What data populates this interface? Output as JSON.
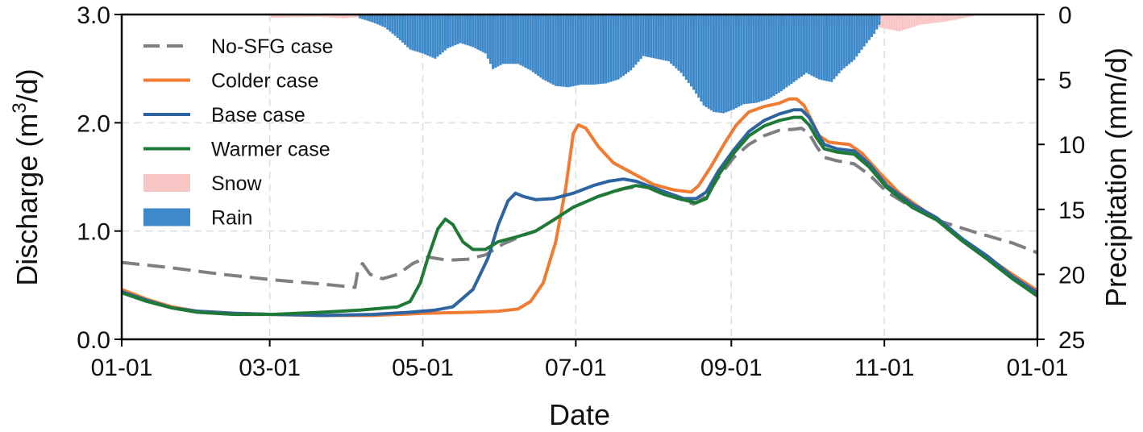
{
  "chart_data": {
    "type": "line",
    "xlabel": "Date",
    "ylabel_left": "Discharge (m",
    "ylabel_left_sup": "3",
    "ylabel_left_tail": "/d)",
    "ylabel_right": "Precipitation (mm/d)",
    "xlim": [
      0,
      365
    ],
    "ylim_left": [
      0,
      3
    ],
    "ylim_right": [
      0,
      25
    ],
    "right_axis_inverted": true,
    "grid": true,
    "legend_position": "upper-left",
    "x_ticks": [
      {
        "day": 0,
        "label": "01-01"
      },
      {
        "day": 59,
        "label": "03-01"
      },
      {
        "day": 120,
        "label": "05-01"
      },
      {
        "day": 181,
        "label": "07-01"
      },
      {
        "day": 243,
        "label": "09-01"
      },
      {
        "day": 304,
        "label": "11-01"
      },
      {
        "day": 365,
        "label": "01-01"
      }
    ],
    "y_ticks_left": [
      {
        "value": 0,
        "label": "0.0"
      },
      {
        "value": 1,
        "label": "1.0"
      },
      {
        "value": 2,
        "label": "2.0"
      },
      {
        "value": 3,
        "label": "3.0"
      }
    ],
    "y_ticks_right": [
      {
        "value": 0,
        "label": "0"
      },
      {
        "value": 5,
        "label": "5"
      },
      {
        "value": 10,
        "label": "10"
      },
      {
        "value": 15,
        "label": "15"
      },
      {
        "value": 20,
        "label": "20"
      },
      {
        "value": 25,
        "label": "25"
      }
    ],
    "series": [
      {
        "name": "No-SFG case",
        "color": "#7f7f7f",
        "dash": "dashed",
        "points": [
          [
            0,
            0.71
          ],
          [
            20,
            0.66
          ],
          [
            40,
            0.6
          ],
          [
            60,
            0.55
          ],
          [
            80,
            0.51
          ],
          [
            93,
            0.48
          ],
          [
            94,
            0.62
          ],
          [
            96,
            0.7
          ],
          [
            99,
            0.6
          ],
          [
            104,
            0.56
          ],
          [
            110,
            0.6
          ],
          [
            116,
            0.7
          ],
          [
            122,
            0.76
          ],
          [
            130,
            0.73
          ],
          [
            138,
            0.74
          ],
          [
            145,
            0.78
          ],
          [
            152,
            0.88
          ],
          [
            160,
            0.96
          ],
          [
            165,
            1.0
          ],
          [
            172,
            1.1
          ],
          [
            180,
            1.22
          ],
          [
            190,
            1.32
          ],
          [
            200,
            1.39
          ],
          [
            208,
            1.42
          ],
          [
            215,
            1.35
          ],
          [
            222,
            1.3
          ],
          [
            228,
            1.25
          ],
          [
            233,
            1.32
          ],
          [
            238,
            1.5
          ],
          [
            244,
            1.68
          ],
          [
            250,
            1.8
          ],
          [
            256,
            1.88
          ],
          [
            262,
            1.93
          ],
          [
            268,
            1.94
          ],
          [
            271,
            1.95
          ],
          [
            274,
            1.9
          ],
          [
            277,
            1.78
          ],
          [
            280,
            1.68
          ],
          [
            285,
            1.65
          ],
          [
            292,
            1.62
          ],
          [
            298,
            1.52
          ],
          [
            305,
            1.36
          ],
          [
            315,
            1.22
          ],
          [
            325,
            1.1
          ],
          [
            340,
            0.99
          ],
          [
            355,
            0.89
          ],
          [
            365,
            0.8
          ]
        ]
      },
      {
        "name": "Colder case",
        "color": "#f07c34",
        "dash": "solid",
        "points": [
          [
            0,
            0.46
          ],
          [
            10,
            0.37
          ],
          [
            20,
            0.3
          ],
          [
            30,
            0.26
          ],
          [
            45,
            0.24
          ],
          [
            60,
            0.23
          ],
          [
            80,
            0.22
          ],
          [
            100,
            0.22
          ],
          [
            120,
            0.24
          ],
          [
            140,
            0.25
          ],
          [
            150,
            0.26
          ],
          [
            158,
            0.28
          ],
          [
            163,
            0.35
          ],
          [
            168,
            0.52
          ],
          [
            173,
            0.9
          ],
          [
            177,
            1.4
          ],
          [
            180,
            1.9
          ],
          [
            182,
            1.98
          ],
          [
            185,
            1.95
          ],
          [
            190,
            1.78
          ],
          [
            196,
            1.63
          ],
          [
            204,
            1.53
          ],
          [
            212,
            1.43
          ],
          [
            220,
            1.38
          ],
          [
            227,
            1.36
          ],
          [
            230,
            1.42
          ],
          [
            235,
            1.6
          ],
          [
            240,
            1.8
          ],
          [
            245,
            1.98
          ],
          [
            250,
            2.1
          ],
          [
            256,
            2.15
          ],
          [
            262,
            2.18
          ],
          [
            266,
            2.22
          ],
          [
            269,
            2.22
          ],
          [
            272,
            2.16
          ],
          [
            275,
            2.02
          ],
          [
            278,
            1.88
          ],
          [
            282,
            1.82
          ],
          [
            290,
            1.8
          ],
          [
            295,
            1.72
          ],
          [
            302,
            1.54
          ],
          [
            310,
            1.35
          ],
          [
            318,
            1.22
          ],
          [
            325,
            1.1
          ],
          [
            335,
            0.92
          ],
          [
            345,
            0.76
          ],
          [
            355,
            0.6
          ],
          [
            365,
            0.45
          ]
        ]
      },
      {
        "name": "Base case",
        "color": "#2e64a0",
        "dash": "solid",
        "points": [
          [
            0,
            0.44
          ],
          [
            10,
            0.36
          ],
          [
            20,
            0.29
          ],
          [
            30,
            0.26
          ],
          [
            45,
            0.24
          ],
          [
            60,
            0.23
          ],
          [
            80,
            0.22
          ],
          [
            100,
            0.23
          ],
          [
            115,
            0.25
          ],
          [
            125,
            0.27
          ],
          [
            132,
            0.3
          ],
          [
            140,
            0.46
          ],
          [
            146,
            0.75
          ],
          [
            150,
            1.05
          ],
          [
            154,
            1.28
          ],
          [
            157,
            1.35
          ],
          [
            160,
            1.32
          ],
          [
            165,
            1.29
          ],
          [
            172,
            1.3
          ],
          [
            180,
            1.35
          ],
          [
            188,
            1.42
          ],
          [
            194,
            1.46
          ],
          [
            200,
            1.48
          ],
          [
            205,
            1.46
          ],
          [
            212,
            1.4
          ],
          [
            218,
            1.35
          ],
          [
            224,
            1.3
          ],
          [
            229,
            1.3
          ],
          [
            233,
            1.36
          ],
          [
            238,
            1.56
          ],
          [
            244,
            1.75
          ],
          [
            250,
            1.92
          ],
          [
            256,
            2.02
          ],
          [
            262,
            2.08
          ],
          [
            268,
            2.12
          ],
          [
            271,
            2.12
          ],
          [
            274,
            2.05
          ],
          [
            277,
            1.92
          ],
          [
            280,
            1.8
          ],
          [
            285,
            1.76
          ],
          [
            292,
            1.74
          ],
          [
            298,
            1.62
          ],
          [
            305,
            1.42
          ],
          [
            315,
            1.25
          ],
          [
            325,
            1.12
          ],
          [
            335,
            0.93
          ],
          [
            345,
            0.77
          ],
          [
            355,
            0.58
          ],
          [
            365,
            0.43
          ]
        ]
      },
      {
        "name": "Warmer case",
        "color": "#1f7a38",
        "dash": "solid",
        "points": [
          [
            0,
            0.43
          ],
          [
            10,
            0.35
          ],
          [
            20,
            0.29
          ],
          [
            30,
            0.25
          ],
          [
            45,
            0.23
          ],
          [
            60,
            0.23
          ],
          [
            80,
            0.25
          ],
          [
            95,
            0.27
          ],
          [
            110,
            0.3
          ],
          [
            115,
            0.35
          ],
          [
            119,
            0.52
          ],
          [
            122,
            0.75
          ],
          [
            126,
            1.02
          ],
          [
            129,
            1.11
          ],
          [
            132,
            1.06
          ],
          [
            136,
            0.9
          ],
          [
            140,
            0.83
          ],
          [
            145,
            0.83
          ],
          [
            150,
            0.9
          ],
          [
            158,
            0.95
          ],
          [
            165,
            1.0
          ],
          [
            172,
            1.1
          ],
          [
            180,
            1.22
          ],
          [
            190,
            1.32
          ],
          [
            198,
            1.38
          ],
          [
            205,
            1.42
          ],
          [
            210,
            1.4
          ],
          [
            216,
            1.34
          ],
          [
            222,
            1.3
          ],
          [
            229,
            1.26
          ],
          [
            233,
            1.3
          ],
          [
            238,
            1.52
          ],
          [
            244,
            1.72
          ],
          [
            250,
            1.88
          ],
          [
            256,
            1.97
          ],
          [
            262,
            2.02
          ],
          [
            268,
            2.05
          ],
          [
            271,
            2.05
          ],
          [
            274,
            1.98
          ],
          [
            277,
            1.86
          ],
          [
            280,
            1.76
          ],
          [
            285,
            1.73
          ],
          [
            292,
            1.71
          ],
          [
            298,
            1.59
          ],
          [
            305,
            1.4
          ],
          [
            315,
            1.22
          ],
          [
            325,
            1.1
          ],
          [
            335,
            0.91
          ],
          [
            345,
            0.74
          ],
          [
            355,
            0.56
          ],
          [
            365,
            0.4
          ]
        ]
      }
    ],
    "bars": [
      {
        "name": "Snow",
        "color": "#f9c6c6",
        "points": [
          [
            60,
            0.25
          ],
          [
            70,
            0.2
          ],
          [
            80,
            0.18
          ],
          [
            88,
            0.3
          ],
          [
            95,
            0.2
          ],
          [
            302,
            1.0
          ],
          [
            310,
            1.3
          ],
          [
            318,
            0.8
          ],
          [
            330,
            0.5
          ],
          [
            335,
            0.3
          ],
          [
            340,
            0.1
          ]
        ]
      },
      {
        "name": "Rain",
        "color": "#3d89c9",
        "points": [
          [
            95,
            0.3
          ],
          [
            100,
            0.6
          ],
          [
            105,
            1.0
          ],
          [
            110,
            1.8
          ],
          [
            115,
            2.7
          ],
          [
            120,
            3.0
          ],
          [
            125,
            3.4
          ],
          [
            130,
            2.6
          ],
          [
            135,
            2.2
          ],
          [
            140,
            2.5
          ],
          [
            145,
            3.0
          ],
          [
            148,
            4.2
          ],
          [
            152,
            3.8
          ],
          [
            158,
            3.8
          ],
          [
            163,
            4.3
          ],
          [
            168,
            5.0
          ],
          [
            173,
            5.5
          ],
          [
            178,
            5.6
          ],
          [
            183,
            5.4
          ],
          [
            188,
            5.4
          ],
          [
            193,
            5.3
          ],
          [
            198,
            5.0
          ],
          [
            203,
            4.3
          ],
          [
            208,
            3.2
          ],
          [
            213,
            3.4
          ],
          [
            218,
            3.6
          ],
          [
            223,
            4.5
          ],
          [
            228,
            5.8
          ],
          [
            232,
            7.0
          ],
          [
            236,
            7.5
          ],
          [
            240,
            7.6
          ],
          [
            244,
            7.3
          ],
          [
            248,
            6.9
          ],
          [
            253,
            6.8
          ],
          [
            258,
            6.5
          ],
          [
            263,
            5.9
          ],
          [
            268,
            5.2
          ],
          [
            273,
            4.5
          ],
          [
            278,
            5.0
          ],
          [
            283,
            5.2
          ],
          [
            287,
            4.3
          ],
          [
            292,
            3.5
          ],
          [
            297,
            2.2
          ],
          [
            300,
            1.5
          ],
          [
            302,
            0.8
          ]
        ]
      }
    ]
  },
  "legend": [
    {
      "label": "No-SFG case",
      "kind": "line",
      "color": "#7f7f7f",
      "dash": "dashed"
    },
    {
      "label": "Colder case",
      "kind": "line",
      "color": "#f07c34",
      "dash": "solid"
    },
    {
      "label": "Base case",
      "kind": "line",
      "color": "#2e64a0",
      "dash": "solid"
    },
    {
      "label": "Warmer case",
      "kind": "line",
      "color": "#1f7a38",
      "dash": "solid"
    },
    {
      "label": "Snow",
      "kind": "patch",
      "color": "#f9c6c6"
    },
    {
      "label": "Rain",
      "kind": "patch",
      "color": "#3d89c9"
    }
  ]
}
